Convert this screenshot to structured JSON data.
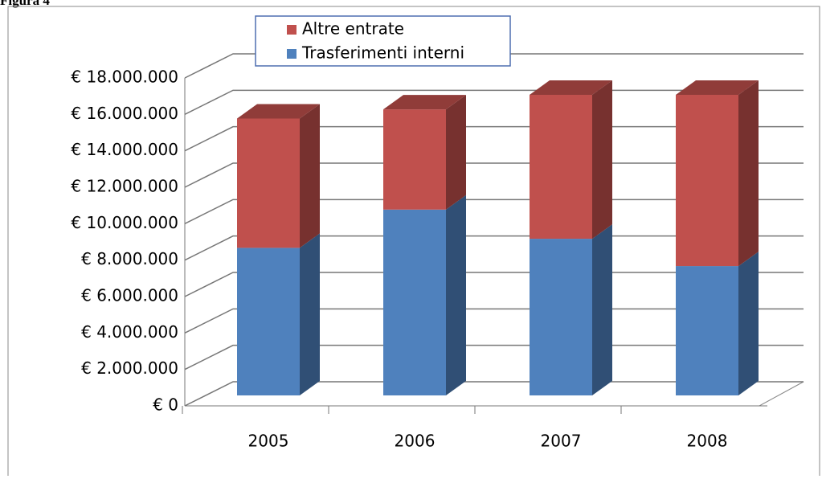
{
  "chart_data": {
    "type": "bar3d_stacked",
    "figure_label": "Figura 4",
    "categories": [
      "2005",
      "2006",
      "2007",
      "2008"
    ],
    "series": [
      {
        "name": "Trasferimenti interni",
        "color": "#4f81bd",
        "values": [
          8100000,
          10200000,
          8600000,
          7100000
        ]
      },
      {
        "name": "Altre entrate",
        "color": "#c0504d",
        "values": [
          7100000,
          5500000,
          7900000,
          9400000
        ]
      }
    ],
    "ylim": [
      0,
      18000000
    ],
    "yticks": [
      {
        "value": 0,
        "label": "€ 0"
      },
      {
        "value": 2000000,
        "label": "€ 2.000.000"
      },
      {
        "value": 4000000,
        "label": "€ 4.000.000"
      },
      {
        "value": 6000000,
        "label": "€ 6.000.000"
      },
      {
        "value": 8000000,
        "label": "€ 8.000.000"
      },
      {
        "value": 10000000,
        "label": "€ 10.000.000"
      },
      {
        "value": 12000000,
        "label": "€ 12.000.000"
      },
      {
        "value": 14000000,
        "label": "€ 14.000.000"
      },
      {
        "value": 16000000,
        "label": "€ 16.000.000"
      },
      {
        "value": 18000000,
        "label": "€ 18.000.000"
      }
    ],
    "grid": true
  }
}
